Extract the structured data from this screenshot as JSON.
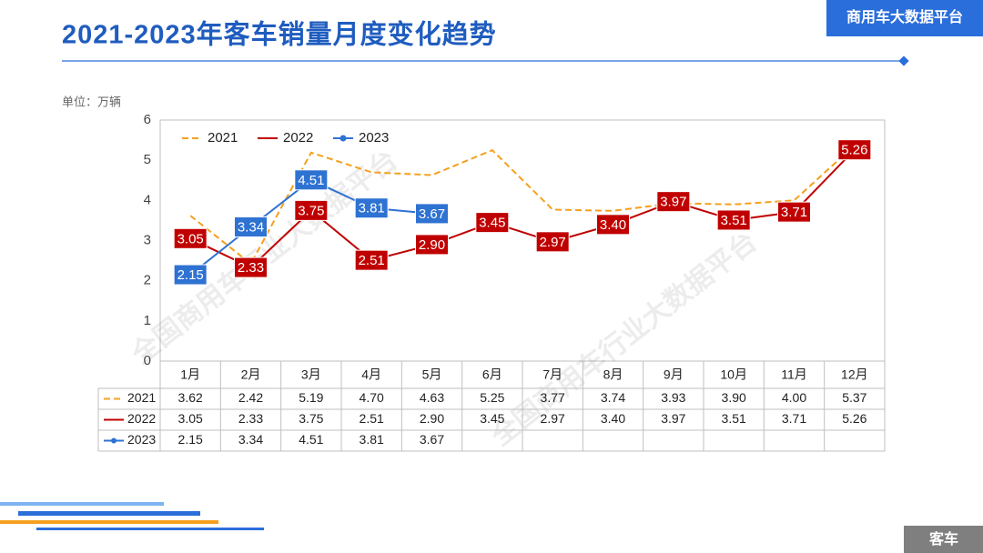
{
  "header": {
    "title": "2021-2023年客车销量月度变化趋势",
    "badge": "商用车大数据平台"
  },
  "footer": {
    "tag": "客车"
  },
  "watermark": "全国商用车行业大数据平台",
  "chart_data": {
    "type": "line",
    "unit_label": "单位：万辆",
    "categories": [
      "1月",
      "2月",
      "3月",
      "4月",
      "5月",
      "6月",
      "7月",
      "8月",
      "9月",
      "10月",
      "11月",
      "12月"
    ],
    "series": [
      {
        "name": "2021",
        "color": "#f5a01e",
        "dashed": true,
        "data_labels": false,
        "values": [
          3.62,
          2.42,
          5.19,
          4.7,
          4.63,
          5.25,
          3.77,
          3.74,
          3.93,
          3.9,
          4.0,
          5.37
        ],
        "value_labels": [
          "3.62",
          "2.42",
          "5.19",
          "4.70",
          "4.63",
          "5.25",
          "3.77",
          "3.74",
          "3.93",
          "3.90",
          "4.00",
          "5.37"
        ]
      },
      {
        "name": "2022",
        "color": "#c00000",
        "dashed": false,
        "data_labels": true,
        "values": [
          3.05,
          2.33,
          3.75,
          2.51,
          2.9,
          3.45,
          2.97,
          3.4,
          3.97,
          3.51,
          3.71,
          5.26
        ],
        "value_labels": [
          "3.05",
          "2.33",
          "3.75",
          "2.51",
          "2.90",
          "3.45",
          "2.97",
          "3.40",
          "3.97",
          "3.51",
          "3.71",
          "5.26"
        ]
      },
      {
        "name": "2023",
        "color": "#2e72d2",
        "dashed": false,
        "markers": true,
        "data_labels": true,
        "values": [
          2.15,
          3.34,
          4.51,
          3.81,
          3.67,
          null,
          null,
          null,
          null,
          null,
          null,
          null
        ],
        "value_labels": [
          "2.15",
          "3.34",
          "4.51",
          "3.81",
          "3.67",
          null,
          null,
          null,
          null,
          null,
          null,
          null
        ]
      }
    ],
    "ylim": [
      0,
      6
    ],
    "yticks": [
      0,
      1,
      2,
      3,
      4,
      5,
      6
    ],
    "grid": false,
    "legend": "top-left"
  }
}
